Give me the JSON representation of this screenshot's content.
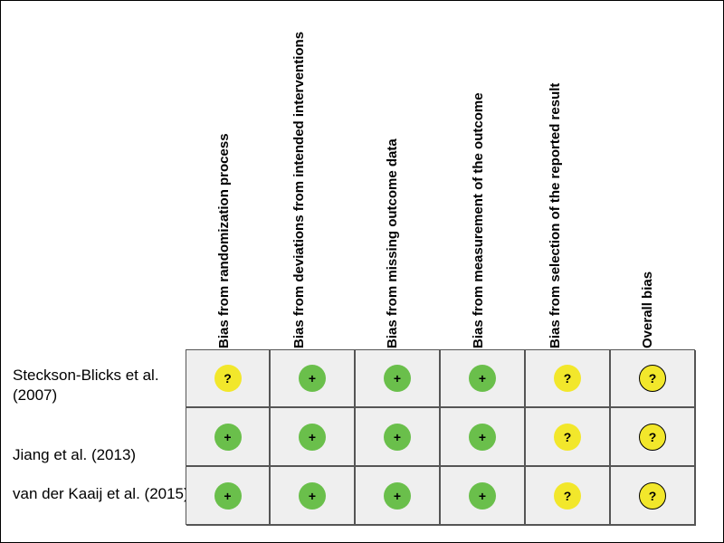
{
  "domains": [
    "Bias from randomization process",
    "Bias from deviations from intended interventions",
    "Bias from missing outcome data",
    "Bias from measurement of the outcome",
    "Bias from selection of the reported result",
    "Overall bias"
  ],
  "studies": [
    {
      "label": "Steckson-Blicks et al. (2007)",
      "ratings": [
        "?",
        "+",
        "+",
        "+",
        "?",
        "?"
      ]
    },
    {
      "label": "Jiang et al. (2013)",
      "ratings": [
        "+",
        "+",
        "+",
        "+",
        "?",
        "?"
      ]
    },
    {
      "label": "van der Kaaij et al. (2015)",
      "ratings": [
        "+",
        "+",
        "+",
        "+",
        "?",
        "?"
      ]
    }
  ],
  "colors": {
    "low_risk": "#6abf4b",
    "some_concerns": "#f2e72b",
    "cell_background": "#efefef"
  }
}
